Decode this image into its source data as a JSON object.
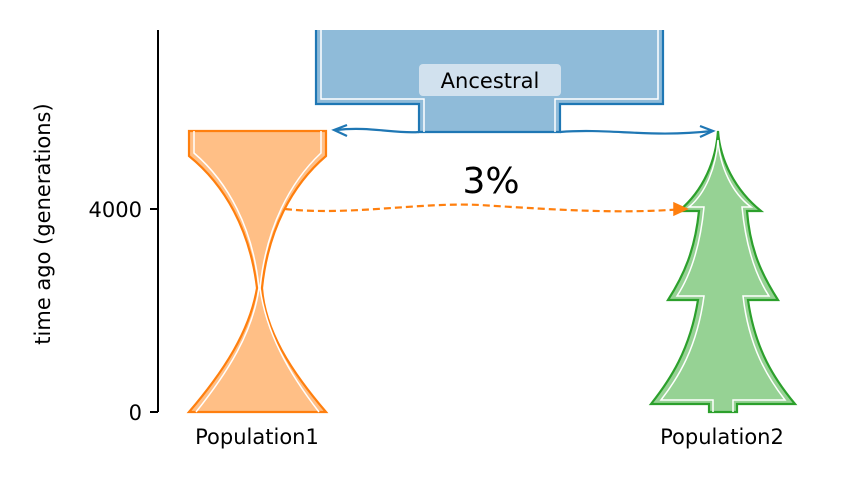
{
  "y_axis": {
    "label": "time ago (generations)",
    "ticks": [
      {
        "value": 0,
        "label": "0"
      },
      {
        "value": 4000,
        "label": "4000"
      }
    ]
  },
  "demes": [
    {
      "name": "Ancestral",
      "fill": "#8fbbd9",
      "stroke": "#1f77b4",
      "start_time": "inf",
      "end_time": 5500
    },
    {
      "name": "Population1",
      "fill": "#ffbf86",
      "stroke": "#ff7f0e",
      "start_time": 5500,
      "end_time": 0
    },
    {
      "name": "Population2",
      "fill": "#96d294",
      "stroke": "#2ca02c",
      "start_time": 5500,
      "end_time": 0
    }
  ],
  "migration": {
    "source": "Population1",
    "dest": "Population2",
    "rate_label": "3%",
    "color": "#ff7f0e"
  },
  "branch_color": "#1f77b4"
}
